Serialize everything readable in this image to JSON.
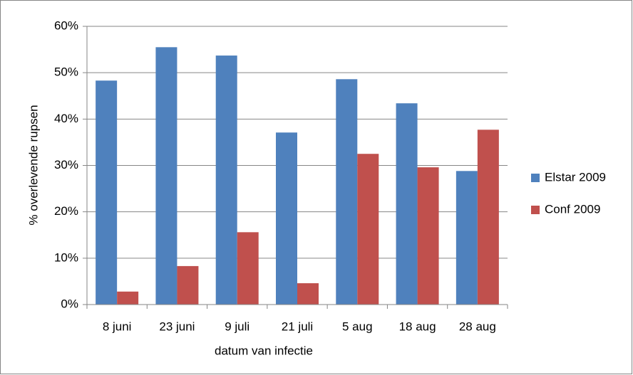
{
  "chart_data": {
    "type": "bar",
    "x_label": "datum van infectie",
    "y_label": "% overlevende rupsen",
    "categories": [
      "8 juni",
      "23 juni",
      "9 juli",
      "21 juli",
      "5 aug",
      "18 aug",
      "28 aug"
    ],
    "series": [
      {
        "name": "Elstar 2009",
        "color": "#4f81bd",
        "values": [
          48.3,
          55.5,
          53.7,
          37.1,
          48.6,
          43.4,
          28.8
        ]
      },
      {
        "name": "Conf 2009",
        "color": "#c0504d",
        "values": [
          2.8,
          8.3,
          15.6,
          4.6,
          32.5,
          29.6,
          37.7
        ]
      }
    ],
    "ylim": [
      0,
      60
    ],
    "yticks": [
      {
        "value": 0,
        "label": "0%"
      },
      {
        "value": 10,
        "label": "10%"
      },
      {
        "value": 20,
        "label": "20%"
      },
      {
        "value": 30,
        "label": "30%"
      },
      {
        "value": 40,
        "label": "40%"
      },
      {
        "value": 50,
        "label": "50%"
      },
      {
        "value": 60,
        "label": "60%"
      }
    ],
    "grid": true,
    "legend": "right"
  }
}
